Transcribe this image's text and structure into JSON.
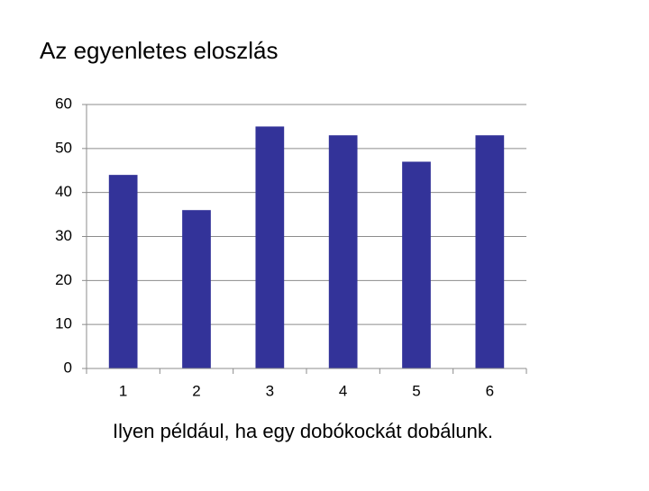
{
  "chart_data": {
    "type": "bar",
    "title": "Az egyenletes eloszlás",
    "caption": "Ilyen például, ha egy dobókockát dobálunk.",
    "categories": [
      "1",
      "2",
      "3",
      "4",
      "5",
      "6"
    ],
    "values": [
      44,
      36,
      55,
      53,
      47,
      53
    ],
    "color": "#333399",
    "ylim": [
      0,
      60
    ],
    "yticks": [
      0,
      10,
      20,
      30,
      40,
      50,
      60
    ],
    "grid": true
  }
}
